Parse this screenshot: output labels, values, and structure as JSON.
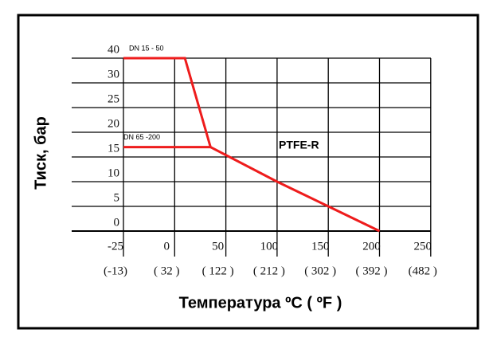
{
  "chart_data": {
    "type": "line",
    "y_label": "Тиск, бар",
    "x_label": "Температура  ºC  ( ºF )",
    "annotation": "PTFE-R",
    "xlim": [
      -25,
      250
    ],
    "xticks": [
      -25,
      0,
      50,
      100,
      150,
      200,
      250
    ],
    "x2_labels": [
      "(-13)",
      "( 32 )",
      "( 122 )",
      "( 212 )",
      "( 302 )",
      "( 392 )",
      "(482 )"
    ],
    "ylim": [
      0,
      40
    ],
    "yticks": [
      0,
      5,
      10,
      15,
      20,
      25,
      30,
      40
    ],
    "grid": true,
    "series": [
      {
        "name": "DN 15 - 50",
        "color": "#ee1c1c",
        "x": [
          -25,
          10,
          35,
          100,
          150,
          200
        ],
        "values": [
          40,
          40,
          17,
          10,
          5,
          0
        ]
      },
      {
        "name": "DN 65 -200",
        "color": "#ee1c1c",
        "x": [
          -25,
          35
        ],
        "values": [
          17,
          17
        ]
      }
    ]
  }
}
